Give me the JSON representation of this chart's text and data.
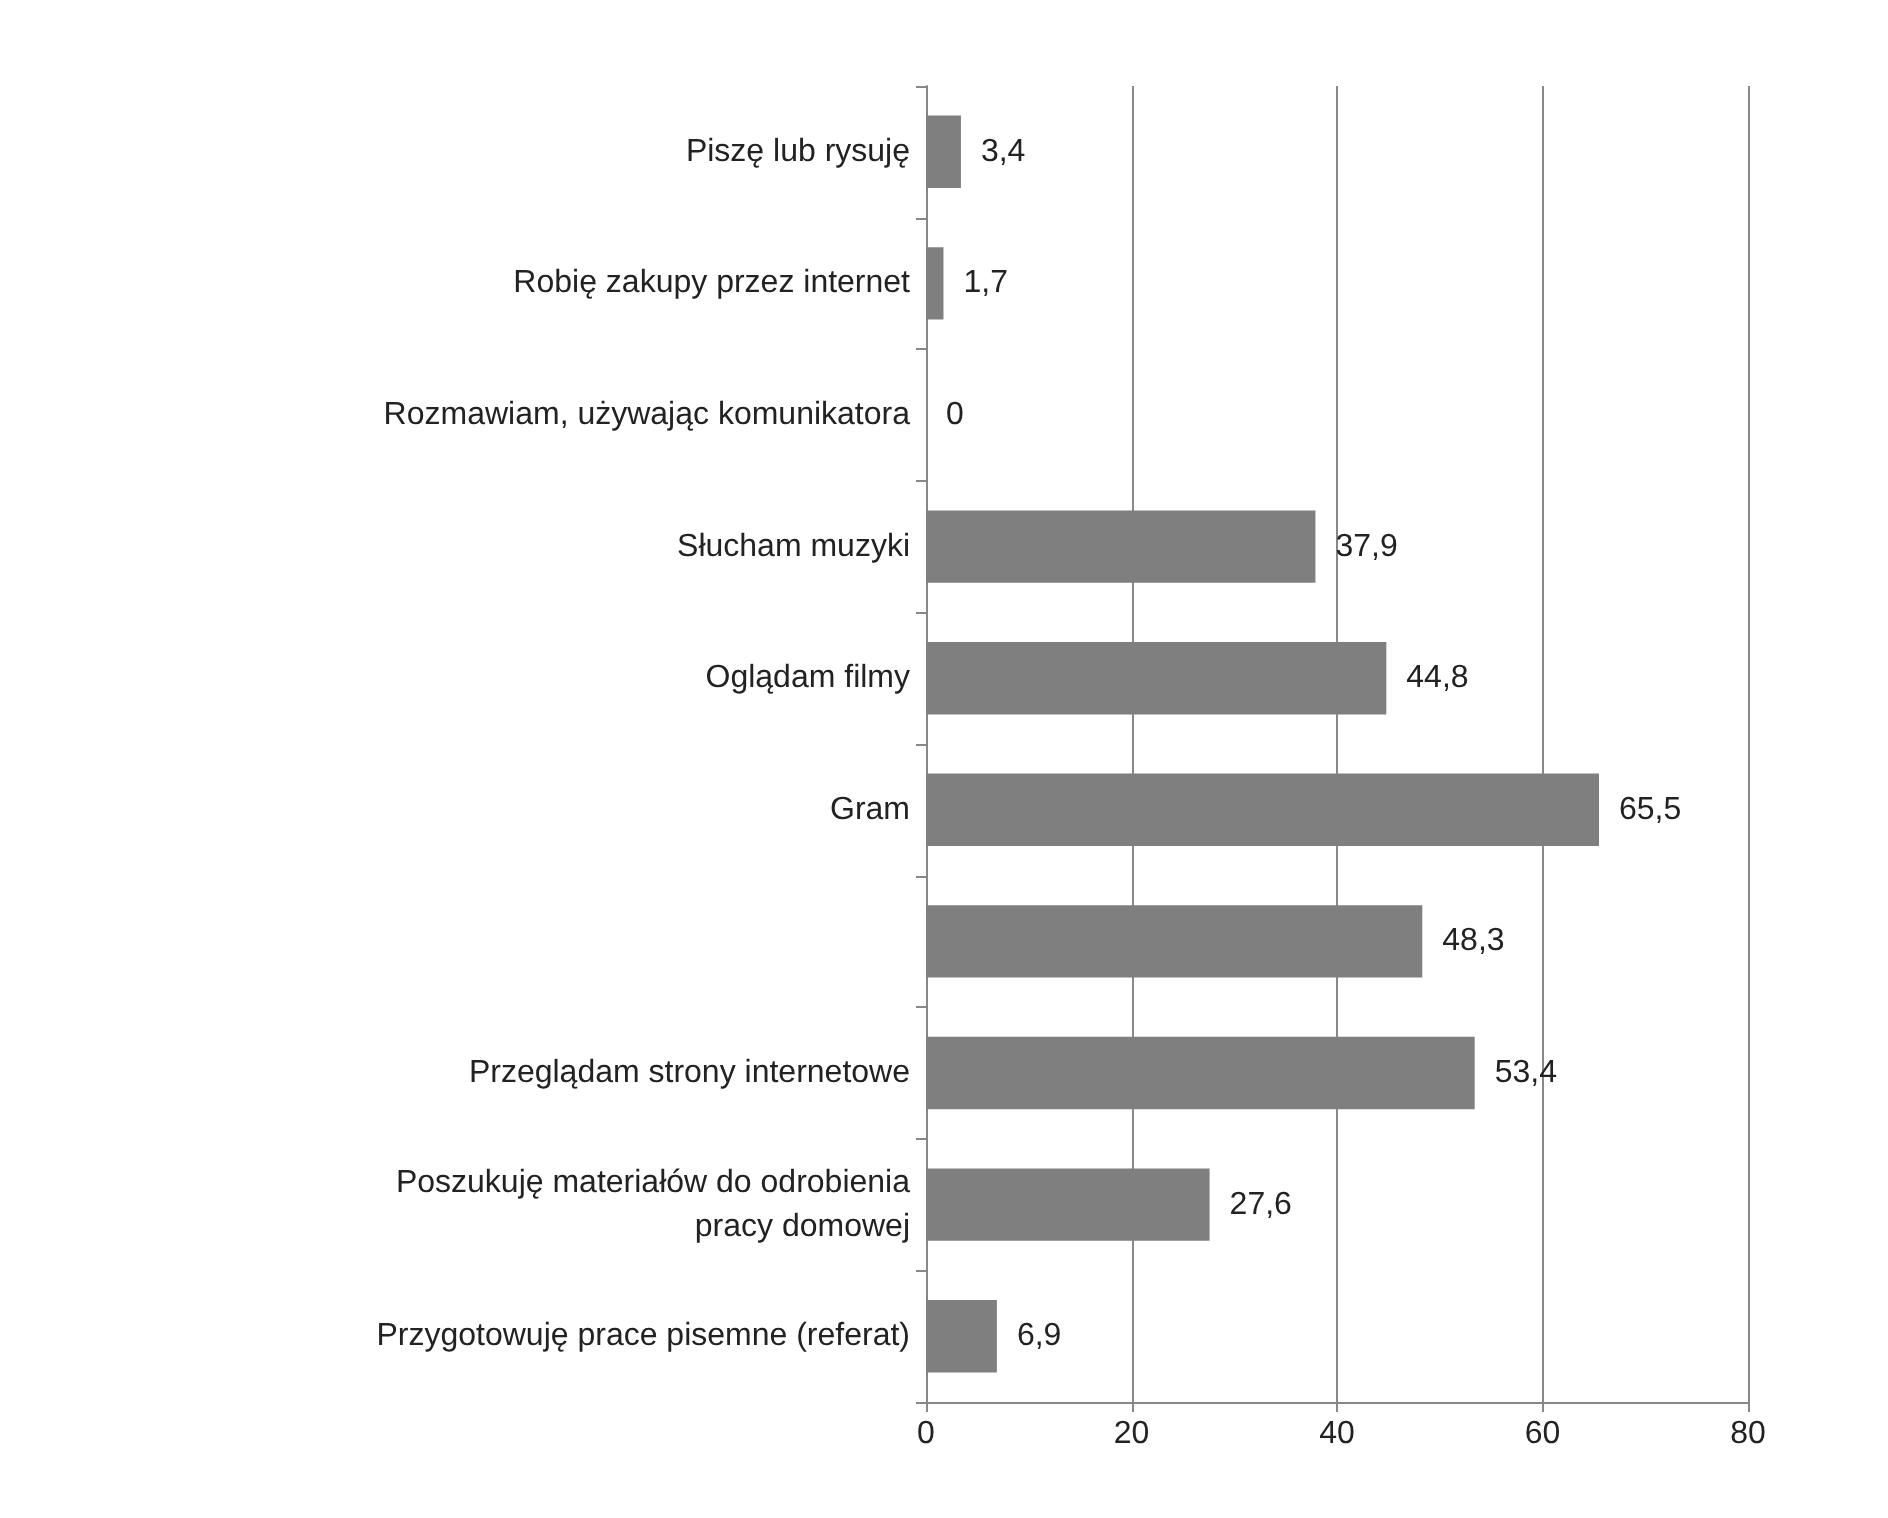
{
  "chart_data": {
    "type": "bar",
    "orientation": "horizontal",
    "categories": [
      "Piszę lub rysuję",
      "Robię zakupy przez internet",
      "Rozmawiam, używając komunikatora",
      "Słucham muzyki",
      "Oglądam filmy",
      "Gram",
      null,
      "Przeglądam strony internetowe",
      "Poszukuję materiałów do odrobienia\npracy domowej",
      "Przygotowuję prace pisemne (referat)"
    ],
    "values": [
      3.4,
      1.7,
      0,
      37.9,
      44.8,
      65.5,
      48.3,
      53.4,
      27.6,
      6.9
    ],
    "value_labels": [
      "3,4",
      "1,7",
      "0",
      "37,9",
      "44,8",
      "65,5",
      "48,3",
      "53,4",
      "27,6",
      "6,9"
    ],
    "color": "#7f7f7f",
    "xlim": [
      0,
      80
    ],
    "xticks": [
      0,
      20,
      40,
      60,
      80
    ],
    "grid": "x"
  }
}
